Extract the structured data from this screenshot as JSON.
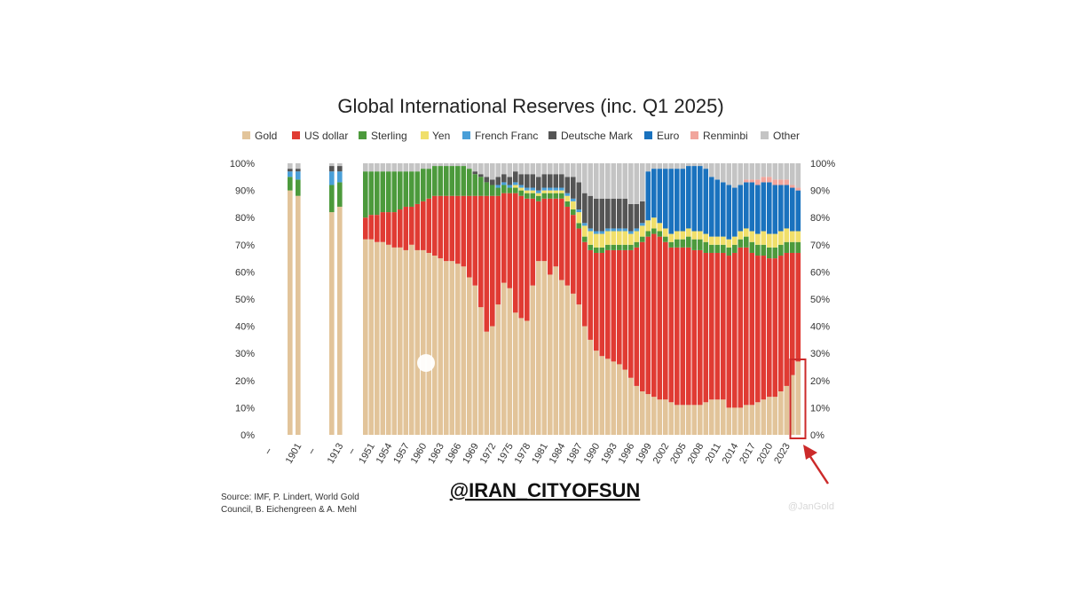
{
  "chart_data": {
    "type": "bar",
    "stacked": true,
    "title": "Global International Reserves (inc. Q1 2025)",
    "legend_position": "top",
    "ylim": [
      0,
      100
    ],
    "y_ticks": [
      "0%",
      "10%",
      "20%",
      "30%",
      "40%",
      "50%",
      "60%",
      "70%",
      "80%",
      "90%",
      "100%"
    ],
    "y_axis_sides": "left and right",
    "grid": false,
    "series_names": [
      "Gold",
      "US dollar",
      "Sterling",
      "Yen",
      "French Franc",
      "Deutsche Mark",
      "Euro",
      "Renminbi",
      "Other"
    ],
    "colors": {
      "Gold": "#e2c49a",
      "US dollar": "#e03b33",
      "Sterling": "#4c9a3c",
      "Yen": "#f0df6a",
      "French Franc": "#4a9fd8",
      "Deutsche Mark": "#555555",
      "Euro": "#1a72be",
      "Renminbi": "#f1a59c",
      "Other": "#c4c4c4"
    },
    "x_tick_labels": [
      "1901",
      "1913",
      "1951",
      "1954",
      "1957",
      "1960",
      "1963",
      "1966",
      "1969",
      "1972",
      "1975",
      "1978",
      "1981",
      "1984",
      "1987",
      "1990",
      "1993",
      "1996",
      "1999",
      "2002",
      "2005",
      "2008",
      "2011",
      "2014",
      "2017",
      "2020",
      "2023"
    ],
    "data": [
      {
        "year": 1899,
        "gold": 90,
        "usd": 0,
        "ster": 5,
        "yen": 0,
        "ff": 2,
        "dm": 1,
        "euro": 0,
        "rmb": 0
      },
      {
        "year": 1901,
        "gold": 88,
        "usd": 0,
        "ster": 6,
        "yen": 0,
        "ff": 3,
        "dm": 1,
        "euro": 0,
        "rmb": 0
      },
      {
        "year": 1911,
        "gold": 82,
        "usd": 0,
        "ster": 10,
        "yen": 0,
        "ff": 5,
        "dm": 2,
        "euro": 0,
        "rmb": 0
      },
      {
        "year": 1913,
        "gold": 84,
        "usd": 0,
        "ster": 9,
        "yen": 0,
        "ff": 4,
        "dm": 2,
        "euro": 0,
        "rmb": 0
      },
      {
        "year": 1950,
        "gold": 72,
        "usd": 8,
        "ster": 17,
        "yen": 0,
        "ff": 0,
        "dm": 0,
        "euro": 0,
        "rmb": 0
      },
      {
        "year": 1951,
        "gold": 72,
        "usd": 9,
        "ster": 16,
        "yen": 0,
        "ff": 0,
        "dm": 0,
        "euro": 0,
        "rmb": 0
      },
      {
        "year": 1952,
        "gold": 71,
        "usd": 10,
        "ster": 16,
        "yen": 0,
        "ff": 0,
        "dm": 0,
        "euro": 0,
        "rmb": 0
      },
      {
        "year": 1953,
        "gold": 71,
        "usd": 11,
        "ster": 15,
        "yen": 0,
        "ff": 0,
        "dm": 0,
        "euro": 0,
        "rmb": 0
      },
      {
        "year": 1954,
        "gold": 70,
        "usd": 12,
        "ster": 15,
        "yen": 0,
        "ff": 0,
        "dm": 0,
        "euro": 0,
        "rmb": 0
      },
      {
        "year": 1955,
        "gold": 69,
        "usd": 13,
        "ster": 15,
        "yen": 0,
        "ff": 0,
        "dm": 0,
        "euro": 0,
        "rmb": 0
      },
      {
        "year": 1956,
        "gold": 69,
        "usd": 14,
        "ster": 14,
        "yen": 0,
        "ff": 0,
        "dm": 0,
        "euro": 0,
        "rmb": 0
      },
      {
        "year": 1957,
        "gold": 68,
        "usd": 16,
        "ster": 13,
        "yen": 0,
        "ff": 0,
        "dm": 0,
        "euro": 0,
        "rmb": 0
      },
      {
        "year": 1958,
        "gold": 70,
        "usd": 14,
        "ster": 13,
        "yen": 0,
        "ff": 0,
        "dm": 0,
        "euro": 0,
        "rmb": 0
      },
      {
        "year": 1959,
        "gold": 68,
        "usd": 17,
        "ster": 12,
        "yen": 0,
        "ff": 0,
        "dm": 0,
        "euro": 0,
        "rmb": 0
      },
      {
        "year": 1960,
        "gold": 68,
        "usd": 18,
        "ster": 12,
        "yen": 0,
        "ff": 0,
        "dm": 0,
        "euro": 0,
        "rmb": 0
      },
      {
        "year": 1961,
        "gold": 67,
        "usd": 20,
        "ster": 11,
        "yen": 0,
        "ff": 0,
        "dm": 0,
        "euro": 0,
        "rmb": 0
      },
      {
        "year": 1962,
        "gold": 66,
        "usd": 22,
        "ster": 11,
        "yen": 0,
        "ff": 0,
        "dm": 0,
        "euro": 0,
        "rmb": 0
      },
      {
        "year": 1963,
        "gold": 65,
        "usd": 23,
        "ster": 11,
        "yen": 0,
        "ff": 0,
        "dm": 0,
        "euro": 0,
        "rmb": 0
      },
      {
        "year": 1964,
        "gold": 64,
        "usd": 24,
        "ster": 11,
        "yen": 0,
        "ff": 0,
        "dm": 0,
        "euro": 0,
        "rmb": 0
      },
      {
        "year": 1965,
        "gold": 64,
        "usd": 24,
        "ster": 11,
        "yen": 0,
        "ff": 0,
        "dm": 0,
        "euro": 0,
        "rmb": 0
      },
      {
        "year": 1966,
        "gold": 63,
        "usd": 25,
        "ster": 11,
        "yen": 0,
        "ff": 0,
        "dm": 0,
        "euro": 0,
        "rmb": 0
      },
      {
        "year": 1967,
        "gold": 62,
        "usd": 26,
        "ster": 11,
        "yen": 0,
        "ff": 0,
        "dm": 0,
        "euro": 0,
        "rmb": 0
      },
      {
        "year": 1968,
        "gold": 58,
        "usd": 30,
        "ster": 10,
        "yen": 0,
        "ff": 0,
        "dm": 0,
        "euro": 0,
        "rmb": 0
      },
      {
        "year": 1969,
        "gold": 55,
        "usd": 33,
        "ster": 8,
        "yen": 0,
        "ff": 0,
        "dm": 1,
        "euro": 0,
        "rmb": 0
      },
      {
        "year": 1970,
        "gold": 47,
        "usd": 41,
        "ster": 7,
        "yen": 0,
        "ff": 0,
        "dm": 1,
        "euro": 0,
        "rmb": 0
      },
      {
        "year": 1971,
        "gold": 38,
        "usd": 50,
        "ster": 5,
        "yen": 0,
        "ff": 0,
        "dm": 2,
        "euro": 0,
        "rmb": 0
      },
      {
        "year": 1972,
        "gold": 40,
        "usd": 48,
        "ster": 4,
        "yen": 0,
        "ff": 0,
        "dm": 2,
        "euro": 0,
        "rmb": 0
      },
      {
        "year": 1973,
        "gold": 48,
        "usd": 40,
        "ster": 3,
        "yen": 0,
        "ff": 1,
        "dm": 3,
        "euro": 0,
        "rmb": 0
      },
      {
        "year": 1974,
        "gold": 56,
        "usd": 33,
        "ster": 3,
        "yen": 0,
        "ff": 1,
        "dm": 3,
        "euro": 0,
        "rmb": 0
      },
      {
        "year": 1975,
        "gold": 54,
        "usd": 35,
        "ster": 2,
        "yen": 0,
        "ff": 1,
        "dm": 3,
        "euro": 0,
        "rmb": 0
      },
      {
        "year": 1976,
        "gold": 45,
        "usd": 44,
        "ster": 2,
        "yen": 1,
        "ff": 1,
        "dm": 4,
        "euro": 0,
        "rmb": 0
      },
      {
        "year": 1977,
        "gold": 43,
        "usd": 45,
        "ster": 2,
        "yen": 1,
        "ff": 1,
        "dm": 4,
        "euro": 0,
        "rmb": 0
      },
      {
        "year": 1978,
        "gold": 42,
        "usd": 45,
        "ster": 2,
        "yen": 1,
        "ff": 1,
        "dm": 5,
        "euro": 0,
        "rmb": 0
      },
      {
        "year": 1979,
        "gold": 55,
        "usd": 32,
        "ster": 2,
        "yen": 1,
        "ff": 1,
        "dm": 5,
        "euro": 0,
        "rmb": 0
      },
      {
        "year": 1980,
        "gold": 64,
        "usd": 22,
        "ster": 2,
        "yen": 1,
        "ff": 1,
        "dm": 5,
        "euro": 0,
        "rmb": 0
      },
      {
        "year": 1981,
        "gold": 64,
        "usd": 23,
        "ster": 2,
        "yen": 1,
        "ff": 1,
        "dm": 5,
        "euro": 0,
        "rmb": 0
      },
      {
        "year": 1982,
        "gold": 59,
        "usd": 28,
        "ster": 2,
        "yen": 1,
        "ff": 1,
        "dm": 5,
        "euro": 0,
        "rmb": 0
      },
      {
        "year": 1983,
        "gold": 62,
        "usd": 25,
        "ster": 2,
        "yen": 1,
        "ff": 1,
        "dm": 5,
        "euro": 0,
        "rmb": 0
      },
      {
        "year": 1984,
        "gold": 57,
        "usd": 30,
        "ster": 2,
        "yen": 1,
        "ff": 1,
        "dm": 5,
        "euro": 0,
        "rmb": 0
      },
      {
        "year": 1985,
        "gold": 55,
        "usd": 29,
        "ster": 2,
        "yen": 2,
        "ff": 1,
        "dm": 6,
        "euro": 0,
        "rmb": 0
      },
      {
        "year": 1986,
        "gold": 52,
        "usd": 29,
        "ster": 2,
        "yen": 3,
        "ff": 1,
        "dm": 8,
        "euro": 0,
        "rmb": 0
      },
      {
        "year": 1987,
        "gold": 48,
        "usd": 28,
        "ster": 2,
        "yen": 4,
        "ff": 1,
        "dm": 10,
        "euro": 0,
        "rmb": 0
      },
      {
        "year": 1988,
        "gold": 40,
        "usd": 31,
        "ster": 2,
        "yen": 4,
        "ff": 1,
        "dm": 11,
        "euro": 0,
        "rmb": 0
      },
      {
        "year": 1989,
        "gold": 35,
        "usd": 33,
        "ster": 2,
        "yen": 5,
        "ff": 1,
        "dm": 12,
        "euro": 0,
        "rmb": 0
      },
      {
        "year": 1990,
        "gold": 31,
        "usd": 36,
        "ster": 2,
        "yen": 5,
        "ff": 1,
        "dm": 12,
        "euro": 0,
        "rmb": 0
      },
      {
        "year": 1991,
        "gold": 29,
        "usd": 38,
        "ster": 2,
        "yen": 5,
        "ff": 1,
        "dm": 12,
        "euro": 0,
        "rmb": 0
      },
      {
        "year": 1992,
        "gold": 28,
        "usd": 40,
        "ster": 2,
        "yen": 5,
        "ff": 1,
        "dm": 11,
        "euro": 0,
        "rmb": 0
      },
      {
        "year": 1993,
        "gold": 27,
        "usd": 41,
        "ster": 2,
        "yen": 5,
        "ff": 1,
        "dm": 11,
        "euro": 0,
        "rmb": 0
      },
      {
        "year": 1994,
        "gold": 26,
        "usd": 42,
        "ster": 2,
        "yen": 5,
        "ff": 1,
        "dm": 11,
        "euro": 0,
        "rmb": 0
      },
      {
        "year": 1995,
        "gold": 24,
        "usd": 44,
        "ster": 2,
        "yen": 5,
        "ff": 1,
        "dm": 11,
        "euro": 0,
        "rmb": 0
      },
      {
        "year": 1996,
        "gold": 21,
        "usd": 47,
        "ster": 2,
        "yen": 4,
        "ff": 1,
        "dm": 10,
        "euro": 0,
        "rmb": 0
      },
      {
        "year": 1997,
        "gold": 18,
        "usd": 51,
        "ster": 2,
        "yen": 4,
        "ff": 1,
        "dm": 9,
        "euro": 0,
        "rmb": 0
      },
      {
        "year": 1998,
        "gold": 16,
        "usd": 55,
        "ster": 2,
        "yen": 4,
        "ff": 1,
        "dm": 8,
        "euro": 0,
        "rmb": 0
      },
      {
        "year": 1999,
        "gold": 15,
        "usd": 58,
        "ster": 2,
        "yen": 4,
        "ff": 0,
        "dm": 0,
        "euro": 18,
        "rmb": 0
      },
      {
        "year": 2000,
        "gold": 14,
        "usd": 60,
        "ster": 2,
        "yen": 4,
        "ff": 0,
        "dm": 0,
        "euro": 18,
        "rmb": 0
      },
      {
        "year": 2001,
        "gold": 13,
        "usd": 60,
        "ster": 2,
        "yen": 3,
        "ff": 0,
        "dm": 0,
        "euro": 20,
        "rmb": 0
      },
      {
        "year": 2002,
        "gold": 13,
        "usd": 58,
        "ster": 2,
        "yen": 3,
        "ff": 0,
        "dm": 0,
        "euro": 22,
        "rmb": 0
      },
      {
        "year": 2003,
        "gold": 12,
        "usd": 57,
        "ster": 2,
        "yen": 3,
        "ff": 0,
        "dm": 0,
        "euro": 24,
        "rmb": 0
      },
      {
        "year": 2004,
        "gold": 11,
        "usd": 58,
        "ster": 3,
        "yen": 3,
        "ff": 0,
        "dm": 0,
        "euro": 23,
        "rmb": 0
      },
      {
        "year": 2005,
        "gold": 11,
        "usd": 58,
        "ster": 3,
        "yen": 3,
        "ff": 0,
        "dm": 0,
        "euro": 23,
        "rmb": 0
      },
      {
        "year": 2006,
        "gold": 11,
        "usd": 58,
        "ster": 4,
        "yen": 3,
        "ff": 0,
        "dm": 0,
        "euro": 23,
        "rmb": 0
      },
      {
        "year": 2007,
        "gold": 11,
        "usd": 57,
        "ster": 4,
        "yen": 3,
        "ff": 0,
        "dm": 0,
        "euro": 24,
        "rmb": 0
      },
      {
        "year": 2008,
        "gold": 11,
        "usd": 57,
        "ster": 4,
        "yen": 3,
        "ff": 0,
        "dm": 0,
        "euro": 24,
        "rmb": 0
      },
      {
        "year": 2009,
        "gold": 12,
        "usd": 55,
        "ster": 4,
        "yen": 3,
        "ff": 0,
        "dm": 0,
        "euro": 24,
        "rmb": 0
      },
      {
        "year": 2010,
        "gold": 13,
        "usd": 54,
        "ster": 3,
        "yen": 3,
        "ff": 0,
        "dm": 0,
        "euro": 22,
        "rmb": 0
      },
      {
        "year": 2011,
        "gold": 13,
        "usd": 54,
        "ster": 3,
        "yen": 3,
        "ff": 0,
        "dm": 0,
        "euro": 21,
        "rmb": 0
      },
      {
        "year": 2012,
        "gold": 13,
        "usd": 54,
        "ster": 3,
        "yen": 3,
        "ff": 0,
        "dm": 0,
        "euro": 20,
        "rmb": 0
      },
      {
        "year": 2013,
        "gold": 10,
        "usd": 56,
        "ster": 3,
        "yen": 3,
        "ff": 0,
        "dm": 0,
        "euro": 20,
        "rmb": 0
      },
      {
        "year": 2014,
        "gold": 10,
        "usd": 57,
        "ster": 3,
        "yen": 3,
        "ff": 0,
        "dm": 0,
        "euro": 18,
        "rmb": 0
      },
      {
        "year": 2015,
        "gold": 10,
        "usd": 59,
        "ster": 3,
        "yen": 3,
        "ff": 0,
        "dm": 0,
        "euro": 17,
        "rmb": 0
      },
      {
        "year": 2016,
        "gold": 11,
        "usd": 58,
        "ster": 4,
        "yen": 3,
        "ff": 0,
        "dm": 0,
        "euro": 17,
        "rmb": 1
      },
      {
        "year": 2017,
        "gold": 11,
        "usd": 56,
        "ster": 4,
        "yen": 4,
        "ff": 0,
        "dm": 0,
        "euro": 18,
        "rmb": 1
      },
      {
        "year": 2018,
        "gold": 12,
        "usd": 54,
        "ster": 4,
        "yen": 4,
        "ff": 0,
        "dm": 0,
        "euro": 18,
        "rmb": 2
      },
      {
        "year": 2019,
        "gold": 13,
        "usd": 53,
        "ster": 4,
        "yen": 5,
        "ff": 0,
        "dm": 0,
        "euro": 18,
        "rmb": 2
      },
      {
        "year": 2020,
        "gold": 14,
        "usd": 51,
        "ster": 4,
        "yen": 5,
        "ff": 0,
        "dm": 0,
        "euro": 19,
        "rmb": 2
      },
      {
        "year": 2021,
        "gold": 14,
        "usd": 51,
        "ster": 4,
        "yen": 5,
        "ff": 0,
        "dm": 0,
        "euro": 18,
        "rmb": 2
      },
      {
        "year": 2022,
        "gold": 16,
        "usd": 50,
        "ster": 4,
        "yen": 5,
        "ff": 0,
        "dm": 0,
        "euro": 17,
        "rmb": 2
      },
      {
        "year": 2023,
        "gold": 18,
        "usd": 49,
        "ster": 4,
        "yen": 5,
        "ff": 0,
        "dm": 0,
        "euro": 16,
        "rmb": 2
      },
      {
        "year": 2024,
        "gold": 22,
        "usd": 45,
        "ster": 4,
        "yen": 4,
        "ff": 0,
        "dm": 0,
        "euro": 16,
        "rmb": 1
      },
      {
        "year": 2025,
        "gold": 27,
        "usd": 40,
        "ster": 4,
        "yen": 4,
        "ff": 0,
        "dm": 0,
        "euro": 15,
        "rmb": 1
      }
    ],
    "highlight_year": 2025,
    "highlight_color": "#cc2a2a"
  },
  "source_lines": [
    "Source: IMF, P. Lindert, World Gold",
    "Council, B. Eichengreen & A. Mehl"
  ],
  "watermark": "@IRAN_CITYOFSUN",
  "credit": "@JanGold",
  "legend_labels": {
    "gold": "Gold",
    "usd": "US dollar",
    "sterling": "Sterling",
    "yen": "Yen",
    "french_franc": "French Franc",
    "deutsche_mark": "Deutsche Mark",
    "euro": "Euro",
    "renminbi": "Renminbi",
    "other": "Other"
  }
}
